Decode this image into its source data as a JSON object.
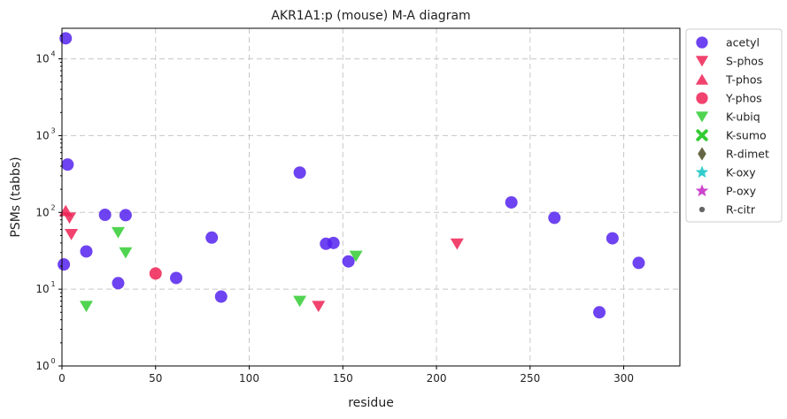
{
  "chart_data": {
    "type": "scatter",
    "title": "AKR1A1:p (mouse) M-A diagram",
    "xlabel": "residue",
    "ylabel": "PSMs (tabbs)",
    "xlim": [
      0,
      330
    ],
    "ylim": [
      1,
      25000
    ],
    "y_scale": "log",
    "grid": true,
    "legend_position": "outside-right",
    "x_ticks": [
      "0",
      "50",
      "100",
      "150",
      "200",
      "250",
      "300"
    ],
    "y_ticks": [
      {
        "value": 1,
        "label": "10",
        "exp": "0"
      },
      {
        "value": 10,
        "label": "10",
        "exp": "1"
      },
      {
        "value": 100,
        "label": "10",
        "exp": "2"
      },
      {
        "value": 1000,
        "label": "10",
        "exp": "3"
      },
      {
        "value": 10000,
        "label": "10",
        "exp": "4"
      }
    ],
    "series": [
      {
        "name": "acetyl",
        "marker": "circle",
        "color": "#5522ee",
        "points": [
          [
            2,
            18500
          ],
          [
            3,
            420
          ],
          [
            1,
            21
          ],
          [
            13,
            31
          ],
          [
            23,
            93
          ],
          [
            30,
            12
          ],
          [
            34,
            92
          ],
          [
            61,
            14
          ],
          [
            80,
            47
          ],
          [
            85,
            8
          ],
          [
            127,
            330
          ],
          [
            141,
            39
          ],
          [
            145,
            40
          ],
          [
            153,
            23
          ],
          [
            240,
            135
          ],
          [
            263,
            85
          ],
          [
            287,
            5
          ],
          [
            294,
            46
          ],
          [
            308,
            22
          ]
        ]
      },
      {
        "name": "S-phos",
        "marker": "triangle-down",
        "color": "#ee2255",
        "points": [
          [
            4,
            85
          ],
          [
            5,
            52
          ],
          [
            137,
            6
          ],
          [
            211,
            39
          ]
        ]
      },
      {
        "name": "T-phos",
        "marker": "triangle-up",
        "color": "#ee2255",
        "points": [
          [
            2,
            105
          ]
        ]
      },
      {
        "name": "Y-phos",
        "marker": "circle",
        "color": "#ee2255",
        "points": [
          [
            50,
            16
          ]
        ]
      },
      {
        "name": "K-ubiq",
        "marker": "triangle-down",
        "color": "#33cc33",
        "points": [
          [
            13,
            6
          ],
          [
            30,
            55
          ],
          [
            34,
            30
          ],
          [
            127,
            7
          ],
          [
            157,
            27
          ]
        ]
      },
      {
        "name": "K-sumo",
        "marker": "x",
        "color": "#33cc33",
        "points": []
      },
      {
        "name": "R-dimet",
        "marker": "diamond",
        "color": "#666644",
        "points": []
      },
      {
        "name": "K-oxy",
        "marker": "star",
        "color": "#33cccc",
        "points": []
      },
      {
        "name": "P-oxy",
        "marker": "star",
        "color": "#cc44cc",
        "points": []
      },
      {
        "name": "R-citr",
        "marker": "small-circle",
        "color": "#666666",
        "points": []
      }
    ]
  }
}
